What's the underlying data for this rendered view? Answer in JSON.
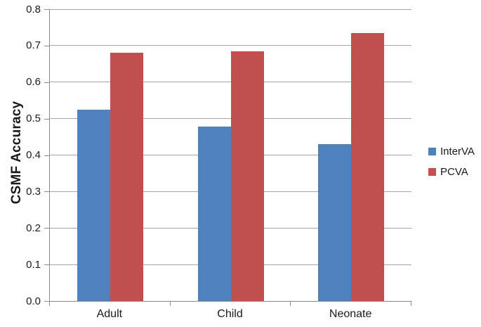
{
  "chart_data": {
    "type": "bar",
    "title": "",
    "xlabel": "",
    "ylabel": "CSMF Accuracy",
    "categories": [
      "Adult",
      "Child",
      "Neonate"
    ],
    "series": [
      {
        "name": "InterVA",
        "color": "#4f81bd",
        "values": [
          0.525,
          0.478,
          0.43
        ]
      },
      {
        "name": "PCVA",
        "color": "#c0504d",
        "values": [
          0.68,
          0.685,
          0.735
        ]
      }
    ],
    "ylim": [
      0.0,
      0.8
    ],
    "y_ticks": [
      "0.0",
      "0.1",
      "0.2",
      "0.3",
      "0.4",
      "0.5",
      "0.6",
      "0.7",
      "0.8"
    ],
    "grid": "horizontal",
    "legend_position": "right"
  },
  "colors": {
    "background": "#ffffff",
    "gridline": "#a6a6a6",
    "axis": "#8c8c8c",
    "text": "#1a1a1a"
  }
}
